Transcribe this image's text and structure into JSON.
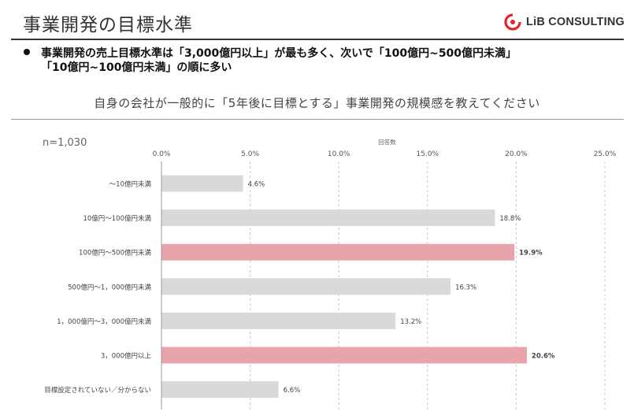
{
  "header": {
    "title": "事業開発の目標水準",
    "logo_text": "LiB CONSULTING"
  },
  "summary": {
    "line1": "事業開発の売上目標水準は「3,000億円以上」が最も多く、次いで「100億円~500億円未満」",
    "line2": "「10億円~100億円未満」の順に多い"
  },
  "question": "自身の会社が一般的に「5年後に目標とする」事業開発の規模感を教えてください",
  "sample_size": "n=1,030",
  "colors": {
    "bar_default": "#d9d9d9",
    "bar_highlight": "#e8a3ab",
    "logo_red": "#e3262d"
  },
  "chart_data": {
    "type": "bar",
    "orientation": "horizontal",
    "xlabel": "回答数",
    "xlim": [
      0,
      25
    ],
    "x_ticks": [
      "0.0%",
      "5.0%",
      "10.0%",
      "15.0%",
      "20.0%",
      "25.0%"
    ],
    "grid": "vertical dashed",
    "categories": [
      "～10億円未満",
      "10億円～100億円未満",
      "100億円～500億円未満",
      "500億円～1，000億円未満",
      "1，000億円～3，000億円未満",
      "3，000億円以上",
      "目標設定されていない／分からない"
    ],
    "values": [
      4.6,
      18.8,
      19.9,
      16.3,
      13.2,
      20.6,
      6.6
    ],
    "value_labels": [
      "4.6%",
      "18.8%",
      "19.9%",
      "16.3%",
      "13.2%",
      "20.6%",
      "6.6%"
    ],
    "highlighted": [
      false,
      false,
      true,
      false,
      false,
      true,
      false
    ]
  }
}
